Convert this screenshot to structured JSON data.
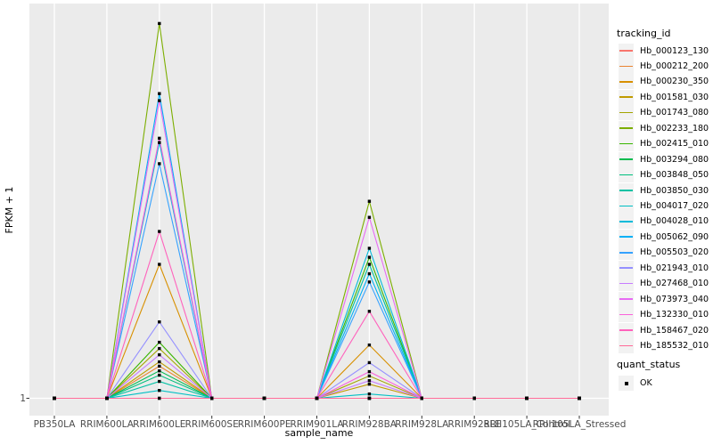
{
  "axes": {
    "y_tick_label": "1"
  },
  "legend": {
    "tracking_title": "tracking_id",
    "quant_title": "quant_status",
    "quant_items": [
      {
        "label": "OK",
        "marker": "black-square-icon"
      }
    ]
  },
  "chart_data": {
    "type": "line",
    "title": "",
    "xlabel": "sample_name",
    "ylabel": "FPKM + 1",
    "legend_position": "right",
    "grid": "vertical-major-only, white on gray panel",
    "panel_bg": "#ebebeb",
    "grid_color": "#ffffff",
    "point_style": {
      "shape": "square",
      "color": "#000000",
      "meaning": "quant_status OK"
    },
    "y_axis_note": "only the tick '1' is labeled at the baseline; series values below are relative peak heights (fraction of panel height above the y=1 baseline)",
    "categories": [
      "PB350LA",
      "RRIM600LA",
      "RRIM600LE",
      "RRIM600SE",
      "RRIM600PE",
      "RRIM901LA",
      "RRIM928BA",
      "RRIM928LA",
      "RRIM928LE",
      "RRII105LA_Control",
      "RRII105LA_Stressed"
    ],
    "series": [
      {
        "name": "Hb_000123_130",
        "color": "#F8766D",
        "values": [
          0,
          0,
          0,
          0,
          0,
          0,
          0,
          0,
          0,
          0,
          0
        ]
      },
      {
        "name": "Hb_000212_200",
        "color": "#EA8331",
        "values": [
          0,
          0,
          0.082,
          0,
          0,
          0,
          0,
          0,
          0,
          0,
          0
        ]
      },
      {
        "name": "Hb_000230_350",
        "color": "#D89000",
        "values": [
          0,
          0,
          0.342,
          0,
          0,
          0,
          0.136,
          0,
          0,
          0,
          0
        ]
      },
      {
        "name": "Hb_001581_030",
        "color": "#C09B00",
        "values": [
          0,
          0,
          0.093,
          0,
          0,
          0,
          0.036,
          0,
          0,
          0,
          0
        ]
      },
      {
        "name": "Hb_001743_080",
        "color": "#A3A500",
        "values": [
          0,
          0,
          0.127,
          0,
          0,
          0,
          0.057,
          0,
          0,
          0,
          0
        ]
      },
      {
        "name": "Hb_002233_180",
        "color": "#7CAE00",
        "values": [
          0,
          0,
          0.957,
          0,
          0,
          0,
          0.503,
          0,
          0,
          0,
          0
        ]
      },
      {
        "name": "Hb_002415_010",
        "color": "#39B600",
        "values": [
          0,
          0,
          0.143,
          0,
          0,
          0,
          0.36,
          0,
          0,
          0,
          0
        ]
      },
      {
        "name": "Hb_003294_080",
        "color": "#00BB4E",
        "values": [
          0,
          0,
          0.07,
          0,
          0,
          0,
          0,
          0,
          0,
          0,
          0
        ]
      },
      {
        "name": "Hb_003848_050",
        "color": "#00BF7D",
        "values": [
          0,
          0,
          0.059,
          0,
          0,
          0,
          0,
          0,
          0,
          0,
          0
        ]
      },
      {
        "name": "Hb_003850_030",
        "color": "#00C1A3",
        "values": [
          0,
          0,
          0.043,
          0,
          0,
          0,
          0.342,
          0,
          0,
          0,
          0
        ]
      },
      {
        "name": "Hb_004017_020",
        "color": "#00BFC4",
        "values": [
          0,
          0,
          0.02,
          0,
          0,
          0,
          0.011,
          0,
          0,
          0,
          0
        ]
      },
      {
        "name": "Hb_004028_010",
        "color": "#00BBDA",
        "values": [
          0,
          0,
          0.653,
          0,
          0,
          0,
          0.383,
          0,
          0,
          0,
          0
        ]
      },
      {
        "name": "Hb_005062_090",
        "color": "#00B0F6",
        "values": [
          0,
          0,
          0.778,
          0,
          0,
          0,
          0.318,
          0,
          0,
          0,
          0
        ]
      },
      {
        "name": "Hb_005503_020",
        "color": "#35A2FF",
        "values": [
          0,
          0,
          0.599,
          0,
          0,
          0,
          0.297,
          0,
          0,
          0,
          0
        ]
      },
      {
        "name": "Hb_021943_010",
        "color": "#9590FF",
        "values": [
          0,
          0,
          0.195,
          0,
          0,
          0,
          0.091,
          0,
          0,
          0,
          0
        ]
      },
      {
        "name": "Hb_027468_010",
        "color": "#C77CFF",
        "values": [
          0,
          0,
          0.111,
          0,
          0,
          0,
          0.045,
          0,
          0,
          0,
          0
        ]
      },
      {
        "name": "Hb_073973_040",
        "color": "#E76BF3",
        "values": [
          0,
          0,
          0.76,
          0,
          0,
          0,
          0.462,
          0,
          0,
          0,
          0
        ]
      },
      {
        "name": "Hb_132330_010",
        "color": "#FA62DB",
        "values": [
          0,
          0,
          0.664,
          0,
          0,
          0,
          0.068,
          0,
          0,
          0,
          0
        ]
      },
      {
        "name": "Hb_158467_020",
        "color": "#FF62BC",
        "values": [
          0,
          0,
          0.426,
          0,
          0,
          0,
          0.222,
          0,
          0,
          0,
          0
        ]
      },
      {
        "name": "Hb_185532_010",
        "color": "#FF6A98",
        "values": [
          0,
          0,
          0,
          0,
          0,
          0,
          0,
          0,
          0,
          0,
          0
        ]
      }
    ]
  }
}
